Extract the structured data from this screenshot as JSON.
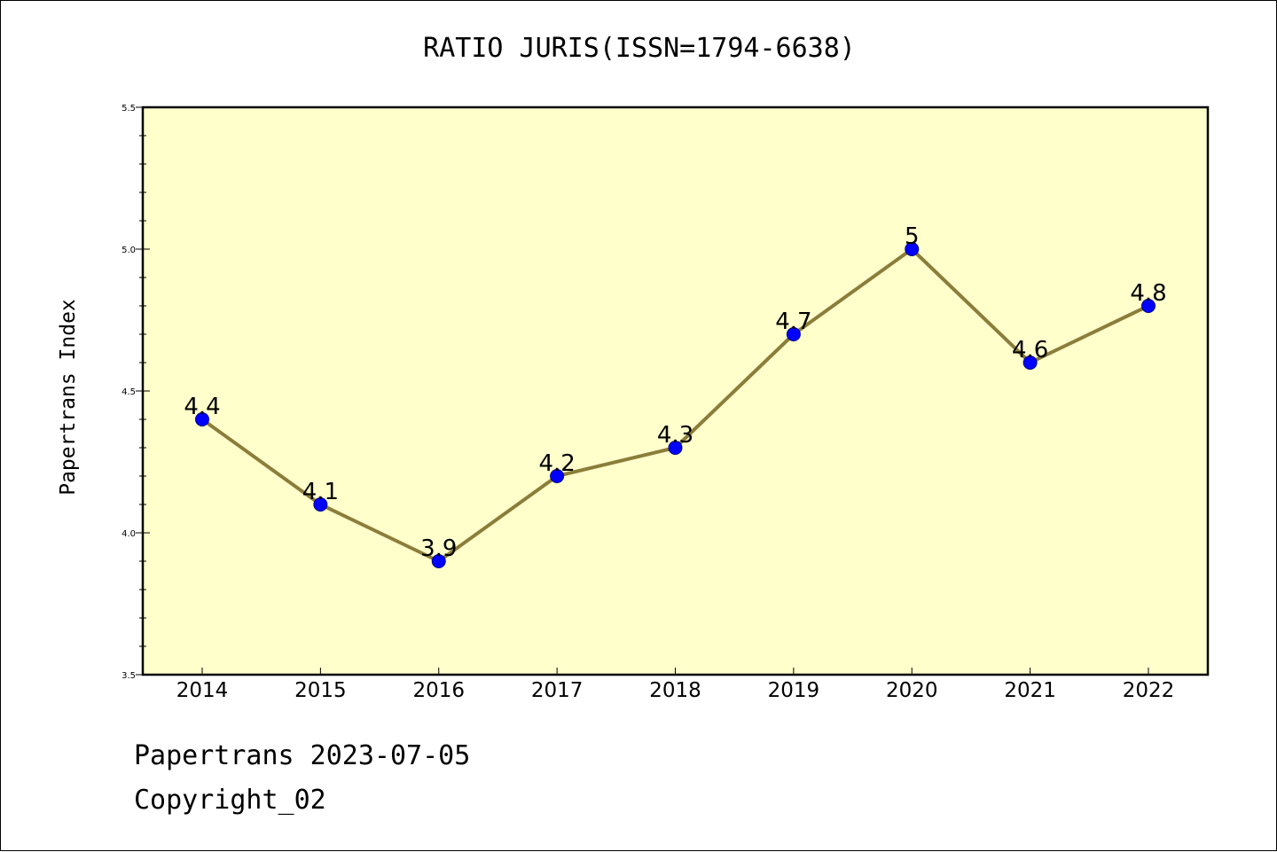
{
  "chart_data": {
    "type": "line",
    "title": "RATIO JURIS(ISSN=1794-6638)",
    "xlabel": "",
    "ylabel": "Papertrans Index",
    "categories": [
      "2014",
      "2015",
      "2016",
      "2017",
      "2018",
      "2019",
      "2020",
      "2021",
      "2022"
    ],
    "series": [
      {
        "values": [
          4.4,
          4.1,
          3.9,
          4.2,
          4.3,
          4.7,
          5.0,
          4.6,
          4.8
        ],
        "data_labels": [
          "4.4",
          "4.1",
          "3.9",
          "4.2",
          "4.3",
          "4.7",
          "5",
          "4.6",
          "4.8"
        ]
      }
    ],
    "ylim": [
      3.5,
      5.5
    ],
    "yticks": [
      "3.5",
      "4.0",
      "4.5",
      "5.0",
      "5.5"
    ],
    "grid": false,
    "legend": "none",
    "colors": {
      "line": "#8b7d3a",
      "marker": "#0000ff",
      "plot_background": "#ffffcc"
    }
  },
  "footer": {
    "date_line": "Papertrans 2023-07-05",
    "copyright": "Copyright_02"
  }
}
